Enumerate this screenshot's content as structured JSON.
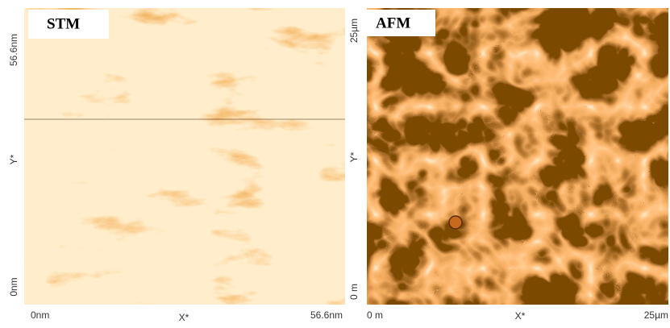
{
  "panels": [
    {
      "label": "STM",
      "y_axis": {
        "top": "56.6nm",
        "middle": "Y*",
        "bottom": "0nm"
      },
      "x_axis": {
        "left": "0nm",
        "middle": "X*",
        "right": "56.6nm"
      }
    },
    {
      "label": "AFM",
      "y_axis": {
        "top": "25µm",
        "middle": "Y*",
        "bottom": "0 m"
      },
      "x_axis": {
        "left": "0 m",
        "middle": "X*",
        "right": "25µm"
      }
    }
  ]
}
